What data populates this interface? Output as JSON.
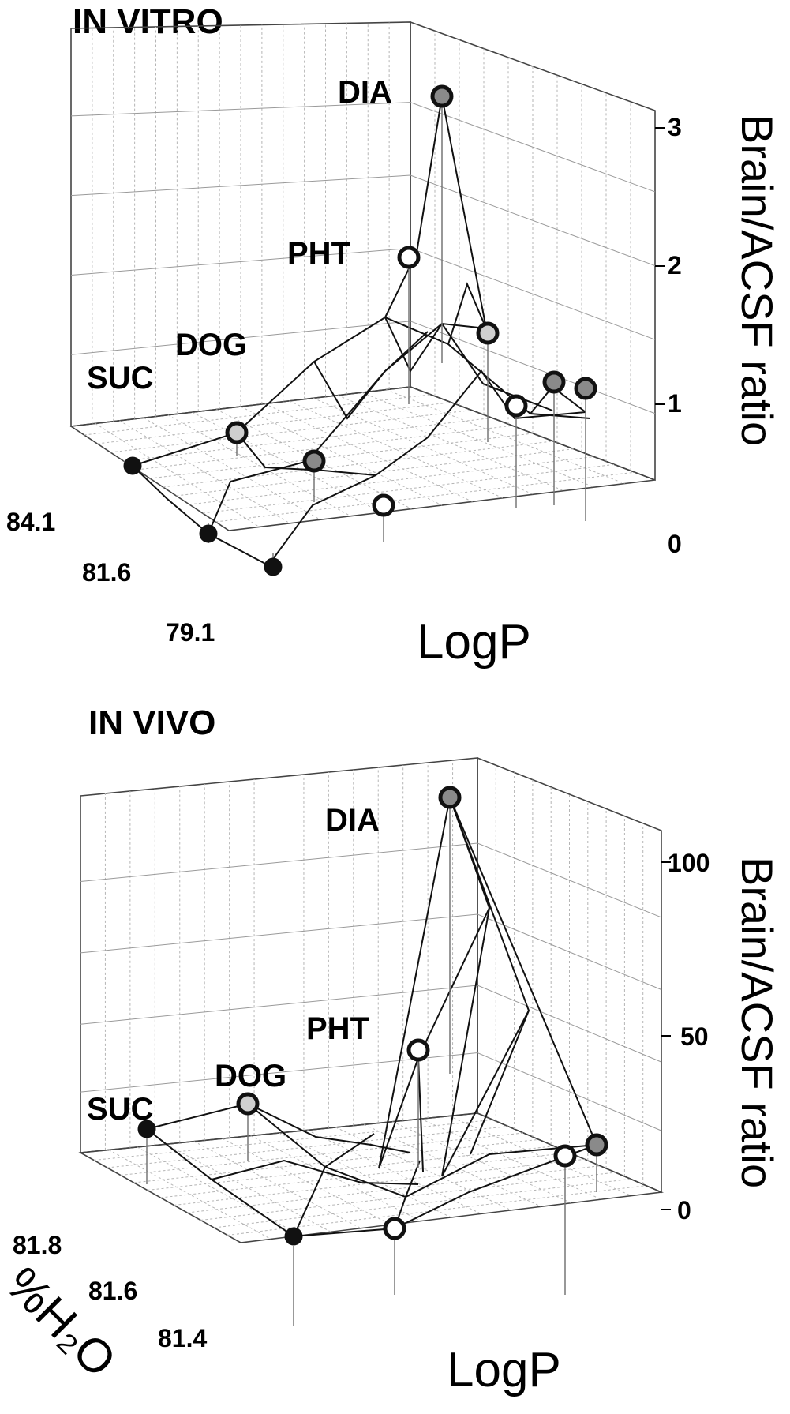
{
  "chart_data": [
    {
      "type": "surface3d",
      "title": "IN VITRO",
      "xlabel": "LogP",
      "ylabel": "",
      "zlabel": "Brain/ACSF ratio",
      "y_ticks": [
        "84.1",
        "81.6",
        "79.1"
      ],
      "z_ticks": [
        "0",
        "1",
        "2",
        "3"
      ],
      "zlim": [
        0,
        3
      ],
      "compound_labels": [
        "DIA",
        "PHT",
        "DOG",
        "SUC"
      ],
      "points": [
        {
          "label": "SUC",
          "z": 0.5,
          "marker": "black"
        },
        {
          "label": "",
          "z": 0.3,
          "marker": "black"
        },
        {
          "label": "",
          "z": 0.1,
          "marker": "black"
        },
        {
          "label": "DOG",
          "z": 1.0,
          "marker": "lightgray"
        },
        {
          "label": "",
          "z": 0.9,
          "marker": "gray"
        },
        {
          "label": "",
          "z": 0.6,
          "marker": "white"
        },
        {
          "label": "PHT",
          "z": 1.9,
          "marker": "white"
        },
        {
          "label": "DIA",
          "z": 3.0,
          "marker": "gray"
        },
        {
          "label": "",
          "z": 1.5,
          "marker": "lightgray"
        },
        {
          "label": "",
          "z": 0.9,
          "marker": "white"
        },
        {
          "label": "",
          "z": 1.2,
          "marker": "gray"
        },
        {
          "label": "",
          "z": 1.2,
          "marker": "gray"
        }
      ]
    },
    {
      "type": "surface3d",
      "title": "IN VIVO",
      "xlabel": "LogP",
      "ylabel": "%H₂O",
      "zlabel": "Brain/ACSF ratio",
      "y_ticks": [
        "81.8",
        "81.6",
        "81.4"
      ],
      "z_ticks": [
        "0",
        "50",
        "100"
      ],
      "zlim": [
        0,
        100
      ],
      "compound_labels": [
        "DIA",
        "PHT",
        "DOG",
        "SUC"
      ],
      "points": [
        {
          "label": "SUC",
          "z": 12,
          "marker": "black"
        },
        {
          "label": "DOG",
          "z": 18,
          "marker": "lightgray"
        },
        {
          "label": "",
          "z": 0,
          "marker": "black"
        },
        {
          "label": "",
          "z": 2,
          "marker": "white"
        },
        {
          "label": "PHT",
          "z": 45,
          "marker": "white"
        },
        {
          "label": "DIA",
          "z": 110,
          "marker": "gray"
        },
        {
          "label": "",
          "z": 5,
          "marker": "white"
        },
        {
          "label": "",
          "z": 4,
          "marker": "gray"
        }
      ]
    }
  ]
}
